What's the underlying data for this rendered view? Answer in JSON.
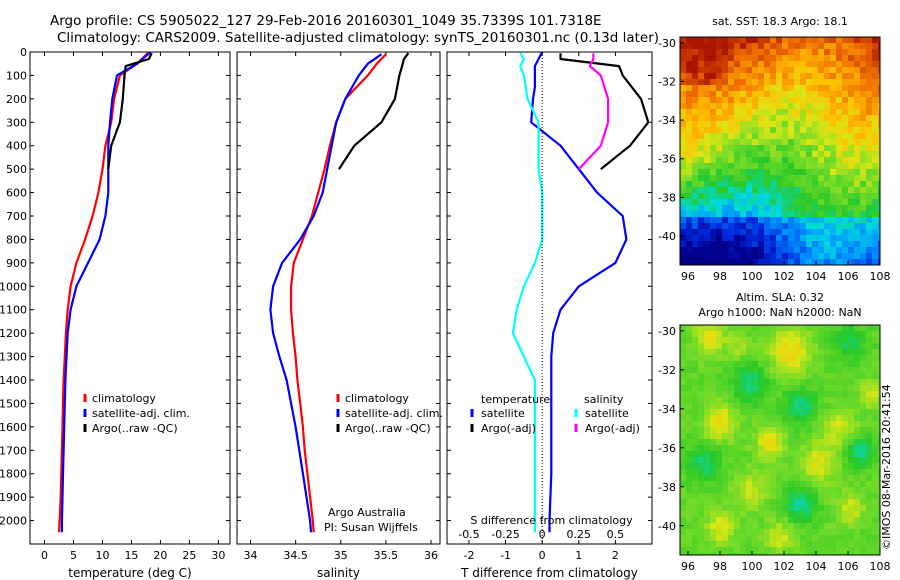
{
  "title": {
    "line1": "Argo profile: CS 5905022_127 29-Feb-2016 20160301_1049 35.7339S 101.7318E",
    "line2": "Climatology: CARS2009. Satellite-adjusted climatology: synTS_20160301.nc (0.13d later)"
  },
  "credit": {
    "line1": "Argo Australia",
    "line2": "PI: Susan Wijffels"
  },
  "stamp": "©IMOS 08-Mar-2016 20:41:54",
  "colors": {
    "climatology": "#ff0000",
    "satellite": "#0000ff",
    "argo": "#000000",
    "sal_satellite": "#00ffff",
    "sal_argo": "#ff00ff"
  },
  "chart_data": [
    {
      "id": "temperature",
      "type": "line",
      "xlabel": "temperature (deg C)",
      "ylabel": "",
      "xlim": [
        -2.5,
        32
      ],
      "ylim": [
        2100,
        0
      ],
      "xticks": [
        0,
        5,
        10,
        15,
        20,
        25,
        30
      ],
      "yticks": [
        0,
        100,
        200,
        300,
        400,
        500,
        600,
        700,
        800,
        900,
        1000,
        1100,
        1200,
        1300,
        1400,
        1500,
        1600,
        1700,
        1800,
        1900,
        2000
      ],
      "legend": [
        "climatology",
        "satellite-adj. clim.",
        "Argo(..raw -QC)"
      ],
      "series": [
        {
          "name": "climatology",
          "color": "#ff0000",
          "depth": [
            0,
            50,
            100,
            200,
            300,
            400,
            500,
            600,
            700,
            800,
            900,
            1000,
            1100,
            1200,
            1300,
            1400,
            1500,
            1600,
            1700,
            1800,
            1900,
            2000,
            2050
          ],
          "values": [
            18.0,
            16.0,
            13.0,
            12.0,
            11.5,
            10.5,
            10.0,
            9.3,
            8.3,
            7.0,
            5.5,
            4.5,
            4.0,
            3.7,
            3.5,
            3.3,
            3.2,
            3.1,
            3.0,
            2.9,
            2.8,
            2.6,
            2.5
          ]
        },
        {
          "name": "satellite-adj. clim.",
          "color": "#0000ff",
          "depth": [
            0,
            50,
            100,
            200,
            300,
            400,
            500,
            600,
            700,
            800,
            900,
            1000,
            1100,
            1200,
            1300,
            1400,
            1500,
            1600,
            1700,
            1800,
            1900,
            2000,
            2050
          ],
          "values": [
            18.3,
            16.0,
            12.5,
            11.7,
            11.3,
            11.0,
            11.0,
            11.0,
            10.5,
            9.5,
            7.5,
            5.5,
            4.5,
            4.0,
            3.8,
            3.6,
            3.5,
            3.4,
            3.3,
            3.2,
            3.1,
            3.0,
            3.0
          ]
        },
        {
          "name": "Argo(..raw -QC)",
          "color": "#000000",
          "depth": [
            5,
            30,
            60,
            100,
            200,
            300,
            400,
            500
          ],
          "values": [
            18.5,
            18.0,
            14.0,
            13.8,
            13.5,
            13.0,
            11.5,
            11.0
          ]
        }
      ]
    },
    {
      "id": "salinity",
      "type": "line",
      "xlabel": "salinity",
      "ylabel": "",
      "xlim": [
        33.85,
        36.1
      ],
      "ylim": [
        2100,
        0
      ],
      "xticks": [
        34,
        34.5,
        35,
        35.5,
        36
      ],
      "legend": [
        "climatology",
        "satellite-adj. clim.",
        "Argo(..raw -QC)"
      ],
      "series": [
        {
          "name": "climatology",
          "color": "#ff0000",
          "depth": [
            10,
            50,
            100,
            200,
            300,
            400,
            500,
            600,
            700,
            800,
            900,
            1000,
            1100,
            1200,
            1300,
            1400,
            1500,
            1600,
            1700,
            1800,
            1900,
            2000,
            2050
          ],
          "values": [
            35.5,
            35.4,
            35.3,
            35.05,
            34.95,
            34.88,
            34.82,
            34.75,
            34.68,
            34.58,
            34.48,
            34.45,
            34.45,
            34.47,
            34.5,
            34.52,
            34.55,
            34.58,
            34.6,
            34.63,
            34.66,
            34.69,
            34.7
          ]
        },
        {
          "name": "satellite-adj. clim.",
          "color": "#0000ff",
          "depth": [
            10,
            50,
            100,
            200,
            300,
            400,
            500,
            600,
            700,
            800,
            900,
            1000,
            1100,
            1200,
            1300,
            1400,
            1500,
            1600,
            1700,
            1800,
            1900,
            2000,
            2050
          ],
          "values": [
            35.45,
            35.3,
            35.2,
            35.05,
            34.95,
            34.9,
            34.85,
            34.8,
            34.7,
            34.55,
            34.35,
            34.25,
            34.22,
            34.25,
            34.32,
            34.4,
            34.45,
            34.5,
            34.54,
            34.58,
            34.62,
            34.66,
            34.67
          ]
        },
        {
          "name": "Argo(..raw -QC)",
          "color": "#000000",
          "depth": [
            5,
            30,
            60,
            100,
            200,
            300,
            400,
            500
          ],
          "values": [
            35.75,
            35.7,
            35.68,
            35.65,
            35.6,
            35.45,
            35.15,
            34.98
          ]
        }
      ]
    },
    {
      "id": "difference",
      "type": "line",
      "xlabel": "T difference from climatology",
      "xlabel2": "S difference from climatology",
      "ylabel": "",
      "xlim": [
        -2.6,
        3.0
      ],
      "ylim": [
        2100,
        0
      ],
      "xticks": [
        -2,
        -1,
        0,
        1,
        2
      ],
      "xticks2": [
        -0.5,
        -0.25,
        0,
        0.25,
        0.5
      ],
      "xtick2_labels": [
        "-0.5",
        "-0.25",
        "0",
        "0.25",
        "0.5"
      ],
      "legend_headers": [
        "temperature",
        "salinity"
      ],
      "legend": [
        "satellite",
        "Argo(-adj)",
        "satellite",
        "Argo(-adj)"
      ],
      "series": [
        {
          "name": "temperature satellite",
          "color": "#0000ff",
          "depth": [
            0,
            30,
            60,
            100,
            150,
            200,
            300,
            400,
            500,
            600,
            700,
            800,
            900,
            1000,
            1100,
            1200,
            1300,
            1400,
            1600,
            1800,
            2000,
            2050
          ],
          "values": [
            0.0,
            -0.1,
            -0.2,
            -0.2,
            -0.2,
            -0.25,
            -0.3,
            0.5,
            1.0,
            1.5,
            2.2,
            2.3,
            2.0,
            1.0,
            0.5,
            0.3,
            0.25,
            0.25,
            0.25,
            0.25,
            0.2,
            0.2
          ]
        },
        {
          "name": "temperature Argo(-adj)",
          "color": "#000000",
          "depth": [
            5,
            30,
            60,
            100,
            200,
            300,
            400,
            500
          ],
          "values": [
            0.5,
            0.5,
            2.1,
            2.2,
            2.7,
            2.9,
            2.4,
            1.6
          ]
        },
        {
          "name": "salinity satellite",
          "color": "#00ffff",
          "depth": [
            5,
            30,
            60,
            100,
            200,
            300,
            400,
            500,
            600,
            700,
            800,
            900,
            1000,
            1100,
            1200,
            1300,
            1400,
            1600,
            1800,
            2000,
            2050
          ],
          "values": [
            -0.6,
            -0.5,
            -0.6,
            -0.5,
            -0.4,
            -0.1,
            -0.1,
            -0.1,
            0.0,
            0.0,
            0.0,
            -0.2,
            -0.5,
            -0.7,
            -0.8,
            -0.5,
            -0.2,
            -0.2,
            -0.2,
            -0.2,
            -0.2
          ]
        },
        {
          "name": "salinity Argo(-adj)",
          "color": "#ff00ff",
          "depth": [
            5,
            30,
            60,
            100,
            200,
            300,
            400,
            500
          ],
          "values": [
            1.4,
            1.4,
            1.3,
            1.6,
            1.8,
            1.8,
            1.6,
            1.0
          ]
        }
      ]
    },
    {
      "id": "sst_map",
      "type": "heatmap",
      "title": "sat. SST: 18.3 Argo: 18.1",
      "xlim": [
        95.5,
        108
      ],
      "ylim": [
        -41.5,
        -29.7
      ],
      "xticks": [
        96,
        98,
        100,
        102,
        104,
        106,
        108
      ],
      "yticks": [
        -30,
        -32,
        -34,
        -36,
        -38,
        -40
      ]
    },
    {
      "id": "sla_map",
      "type": "heatmap",
      "title": "Altim. SLA: 0.32",
      "subtitle": "Argo h1000: NaN h2000: NaN",
      "xlim": [
        95.5,
        108
      ],
      "ylim": [
        -41.5,
        -29.7
      ],
      "xticks": [
        96,
        98,
        100,
        102,
        104,
        106,
        108
      ],
      "yticks": [
        -30,
        -32,
        -34,
        -36,
        -38,
        -40
      ]
    }
  ]
}
